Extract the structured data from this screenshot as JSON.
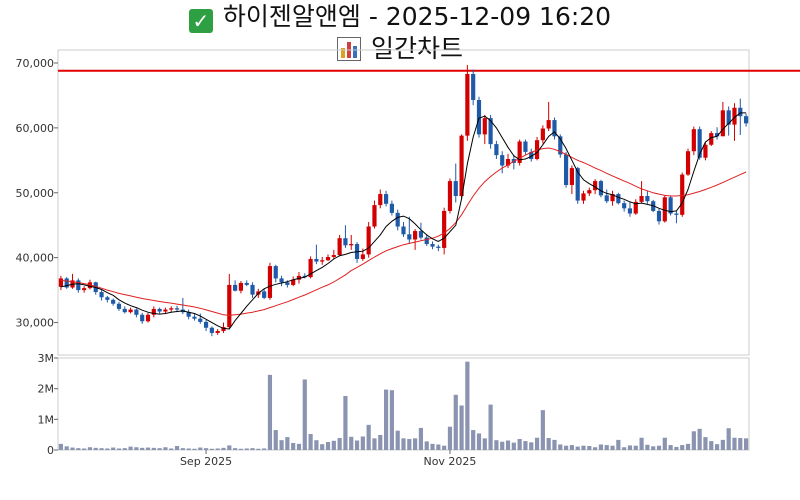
{
  "header": {
    "title": "하이젠알앤엠 - 2025-12-09 16:20",
    "subtitle": "일간차트",
    "check_icon": "check-mark-icon",
    "chart_icon": "bar-chart-icon"
  },
  "colors": {
    "up": "#d20000",
    "down": "#1f5aa8",
    "ma_short": "#000000",
    "ma_long": "#e02020",
    "ref_line": "#e00000",
    "volume": "#8a93b0"
  },
  "chart_data": [
    {
      "type": "candlestick",
      "title": "",
      "y_ticks": [
        30000,
        40000,
        50000,
        60000,
        70000
      ],
      "y_tick_labels": [
        "30,000",
        "40,000",
        "50,000",
        "60,000",
        "70,000"
      ],
      "ylim": [
        25000,
        72000
      ],
      "x_tick_labels": [
        {
          "label": "Sep 2025",
          "index": 25
        },
        {
          "label": "Nov 2025",
          "index": 67
        }
      ],
      "reference_line": 68800,
      "grid": false,
      "ohlc": [
        [
          35500,
          37200,
          35000,
          36800
        ],
        [
          36800,
          37000,
          35200,
          35400
        ],
        [
          35400,
          37500,
          35200,
          36500
        ],
        [
          36500,
          36800,
          34600,
          35000
        ],
        [
          35000,
          35600,
          34600,
          35300
        ],
        [
          35300,
          36600,
          35100,
          36200
        ],
        [
          36200,
          36300,
          34300,
          34700
        ],
        [
          34700,
          35000,
          33400,
          33900
        ],
        [
          33900,
          34100,
          33100,
          33500
        ],
        [
          33500,
          33700,
          32600,
          32900
        ],
        [
          32900,
          33200,
          31800,
          32100
        ],
        [
          32100,
          32500,
          31400,
          31600
        ],
        [
          31600,
          32300,
          31400,
          32000
        ],
        [
          32000,
          32200,
          30800,
          31200
        ],
        [
          31200,
          31500,
          29800,
          30200
        ],
        [
          30200,
          31500,
          30000,
          31200
        ],
        [
          31200,
          32500,
          30800,
          32100
        ],
        [
          32100,
          32300,
          31400,
          31700
        ],
        [
          31700,
          32300,
          31300,
          32000
        ],
        [
          32000,
          32500,
          31600,
          32200
        ],
        [
          32200,
          32600,
          31600,
          32000
        ],
        [
          32000,
          33800,
          31300,
          31600
        ],
        [
          31600,
          32000,
          30500,
          30900
        ],
        [
          30900,
          31300,
          30300,
          30600
        ],
        [
          30600,
          31400,
          29800,
          30100
        ],
        [
          30100,
          30400,
          28700,
          29200
        ],
        [
          29200,
          29400,
          27900,
          28400
        ],
        [
          28400,
          29000,
          28100,
          28700
        ],
        [
          28700,
          30000,
          28400,
          29300
        ],
        [
          29300,
          37500,
          29000,
          35800
        ],
        [
          35800,
          36500,
          34800,
          34900
        ],
        [
          34900,
          36400,
          34500,
          36100
        ],
        [
          36100,
          36500,
          35600,
          35800
        ],
        [
          35800,
          36200,
          33800,
          34300
        ],
        [
          34300,
          35200,
          33800,
          34800
        ],
        [
          34800,
          35200,
          33600,
          33800
        ],
        [
          33800,
          39200,
          33500,
          38700
        ],
        [
          38700,
          38900,
          36200,
          36800
        ],
        [
          36800,
          37200,
          35600,
          36200
        ],
        [
          36200,
          36500,
          35400,
          35800
        ],
        [
          35800,
          37100,
          35600,
          36600
        ],
        [
          36600,
          37800,
          36000,
          37200
        ],
        [
          37200,
          37600,
          36800,
          37000
        ],
        [
          37000,
          40200,
          36800,
          39800
        ],
        [
          39800,
          42000,
          39000,
          39400
        ],
        [
          39400,
          40100,
          38900,
          39600
        ],
        [
          39600,
          40500,
          39500,
          40100
        ],
        [
          40100,
          41200,
          39800,
          40400
        ],
        [
          40400,
          43500,
          40200,
          43000
        ],
        [
          43000,
          45000,
          41500,
          41900
        ],
        [
          41900,
          43500,
          41200,
          42100
        ],
        [
          42100,
          42400,
          39200,
          39800
        ],
        [
          39800,
          41400,
          39500,
          40500
        ],
        [
          40500,
          45500,
          40000,
          44800
        ],
        [
          44800,
          48800,
          44500,
          48100
        ],
        [
          48100,
          50500,
          47600,
          49800
        ],
        [
          49800,
          50300,
          47900,
          48300
        ],
        [
          48300,
          48800,
          46500,
          46900
        ],
        [
          46900,
          47400,
          44200,
          44800
        ],
        [
          44800,
          45500,
          43200,
          43600
        ],
        [
          43600,
          46300,
          42200,
          42800
        ],
        [
          42800,
          44400,
          41200,
          44100
        ],
        [
          44100,
          45400,
          42800,
          43100
        ],
        [
          43100,
          43600,
          41800,
          42100
        ],
        [
          42100,
          42500,
          41300,
          41700
        ],
        [
          41700,
          42000,
          41000,
          41500
        ],
        [
          41500,
          47700,
          40500,
          47200
        ],
        [
          47200,
          52200,
          46800,
          51800
        ],
        [
          51800,
          54500,
          48500,
          49500
        ],
        [
          49500,
          59000,
          49000,
          58800
        ],
        [
          58800,
          69700,
          58000,
          68300
        ],
        [
          68300,
          69000,
          63500,
          64300
        ],
        [
          64300,
          64800,
          58500,
          59000
        ],
        [
          59000,
          62000,
          57500,
          61500
        ],
        [
          61500,
          62000,
          56800,
          57500
        ],
        [
          57500,
          58000,
          55200,
          55800
        ],
        [
          55800,
          56400,
          53000,
          54200
        ],
        [
          54200,
          56000,
          53800,
          55200
        ],
        [
          55200,
          55800,
          53600,
          54600
        ],
        [
          54600,
          58200,
          54200,
          57900
        ],
        [
          57900,
          58200,
          55900,
          56300
        ],
        [
          56300,
          56800,
          54800,
          55200
        ],
        [
          55200,
          58600,
          55000,
          58100
        ],
        [
          58100,
          60400,
          57600,
          59900
        ],
        [
          59900,
          64000,
          59500,
          61200
        ],
        [
          61200,
          61600,
          58200,
          58700
        ],
        [
          58700,
          59000,
          55400,
          55900
        ],
        [
          55900,
          56300,
          50800,
          51200
        ],
        [
          51200,
          54200,
          49800,
          53800
        ],
        [
          53800,
          54000,
          48300,
          48800
        ],
        [
          48800,
          50300,
          48300,
          49900
        ],
        [
          49900,
          50800,
          49500,
          50400
        ],
        [
          50400,
          52100,
          49800,
          51800
        ],
        [
          51800,
          52000,
          49300,
          49600
        ],
        [
          49600,
          50500,
          48400,
          48700
        ],
        [
          48700,
          50300,
          48000,
          49800
        ],
        [
          49800,
          50000,
          48200,
          48400
        ],
        [
          48400,
          48800,
          47100,
          47600
        ],
        [
          47600,
          48600,
          46300,
          46800
        ],
        [
          46800,
          49000,
          46600,
          48600
        ],
        [
          48600,
          51800,
          48400,
          49500
        ],
        [
          49500,
          50300,
          48300,
          48700
        ],
        [
          48700,
          48900,
          47000,
          47200
        ],
        [
          47200,
          47500,
          45100,
          45600
        ],
        [
          45600,
          49600,
          45400,
          49300
        ],
        [
          49300,
          49600,
          46500,
          46800
        ],
        [
          46800,
          47200,
          45300,
          46600
        ],
        [
          46600,
          53100,
          46300,
          52800
        ],
        [
          52800,
          56800,
          52600,
          56400
        ],
        [
          56400,
          60200,
          55800,
          59800
        ],
        [
          59800,
          60200,
          55100,
          55400
        ],
        [
          55400,
          57800,
          55000,
          57400
        ],
        [
          57400,
          59500,
          57200,
          59200
        ],
        [
          59200,
          60100,
          58200,
          58700
        ],
        [
          58700,
          64000,
          59000,
          62700
        ],
        [
          62700,
          63300,
          58800,
          60500
        ],
        [
          60500,
          63800,
          58000,
          63100
        ],
        [
          63100,
          64500,
          58900,
          61800
        ],
        [
          61800,
          62200,
          60200,
          60700
        ]
      ],
      "ma5": [
        35500,
        35700,
        35900,
        36000,
        35800,
        35600,
        35400,
        35100,
        34600,
        34200,
        33500,
        33000,
        32600,
        32300,
        31900,
        31600,
        31400,
        31300,
        31400,
        31600,
        31700,
        31800,
        31600,
        31400,
        31000,
        30500,
        30000,
        29500,
        29100,
        29000,
        30300,
        31400,
        32500,
        33500,
        34500,
        35200,
        35600,
        35900,
        36100,
        36300,
        36600,
        36800,
        37000,
        37500,
        38000,
        38500,
        39100,
        39800,
        40300,
        40500,
        40800,
        40900,
        41000,
        41500,
        42500,
        43500,
        44800,
        45600,
        46200,
        46400,
        46000,
        45200,
        44300,
        43500,
        42900,
        42500,
        43000,
        44000,
        45000,
        49100,
        54500,
        58600,
        61500,
        61800,
        61100,
        60000,
        58500,
        57000,
        55700,
        55100,
        55200,
        55600,
        56200,
        57400,
        58700,
        59400,
        58300,
        56800,
        55000,
        53200,
        52000,
        51400,
        50900,
        50300,
        49900,
        49700,
        49300,
        49000,
        48600,
        48300,
        48400,
        48200,
        48000,
        47600,
        47300,
        47100,
        47200,
        48400,
        50500,
        53300,
        55900,
        57800,
        58500,
        58700,
        59800,
        60700,
        61600,
        62300,
        62300
      ],
      "ma20": [
        36500,
        36400,
        36300,
        36150,
        36000,
        35800,
        35550,
        35300,
        35000,
        34750,
        34500,
        34300,
        34100,
        33900,
        33700,
        33550,
        33400,
        33250,
        33100,
        33000,
        32850,
        32700,
        32550,
        32400,
        32200,
        31950,
        31700,
        31450,
        31200,
        31100,
        31200,
        31300,
        31450,
        31600,
        31800,
        32000,
        32300,
        32600,
        32900,
        33200,
        33550,
        33900,
        34250,
        34650,
        35050,
        35450,
        35800,
        36250,
        36800,
        37350,
        38000,
        38500,
        39000,
        39550,
        40100,
        40600,
        41050,
        41400,
        41700,
        42000,
        42200,
        42400,
        42600,
        42800,
        43000,
        43300,
        43800,
        44500,
        45400,
        46600,
        48100,
        49500,
        50700,
        51700,
        52500,
        53200,
        53800,
        54300,
        54850,
        55300,
        55800,
        56200,
        56600,
        56800,
        56900,
        56700,
        56350,
        55900,
        55450,
        55000,
        54650,
        54250,
        53800,
        53450,
        53000,
        52600,
        52200,
        51800,
        51450,
        51000,
        50600,
        50300,
        50000,
        49800,
        49600,
        49500,
        49500,
        49600,
        49700,
        49950,
        50200,
        50500,
        50850,
        51200,
        51600,
        52000,
        52400,
        52800,
        53200
      ],
      "ma_short_start": 0,
      "ma_long_start": 0
    },
    {
      "type": "bar",
      "title": "",
      "y_ticks": [
        0,
        1000000,
        2000000,
        3000000
      ],
      "y_tick_labels": [
        "0",
        "1M",
        "2M",
        "3M"
      ],
      "ylim": [
        0,
        3000000
      ],
      "volume": [
        200000,
        120000,
        80000,
        60000,
        50000,
        90000,
        70000,
        60000,
        50000,
        80000,
        50000,
        60000,
        110000,
        90000,
        70000,
        80000,
        70000,
        60000,
        90000,
        50000,
        130000,
        60000,
        50000,
        40000,
        80000,
        60000,
        40000,
        50000,
        70000,
        150000,
        60000,
        40000,
        50000,
        60000,
        40000,
        50000,
        2450000,
        650000,
        320000,
        420000,
        230000,
        200000,
        2300000,
        520000,
        320000,
        190000,
        260000,
        300000,
        390000,
        1760000,
        430000,
        310000,
        440000,
        820000,
        380000,
        490000,
        1970000,
        1950000,
        630000,
        380000,
        360000,
        380000,
        720000,
        280000,
        200000,
        180000,
        140000,
        760000,
        1800000,
        1450000,
        2880000,
        650000,
        540000,
        380000,
        1480000,
        320000,
        270000,
        310000,
        240000,
        360000,
        290000,
        250000,
        400000,
        1300000,
        390000,
        330000,
        180000,
        140000,
        160000,
        110000,
        140000,
        130000,
        90000,
        180000,
        160000,
        140000,
        330000,
        90000,
        150000,
        140000,
        400000,
        170000,
        120000,
        140000,
        400000,
        160000,
        100000,
        160000,
        200000,
        610000,
        690000,
        420000,
        290000,
        190000,
        330000,
        710000,
        400000,
        390000,
        380000
      ]
    }
  ]
}
